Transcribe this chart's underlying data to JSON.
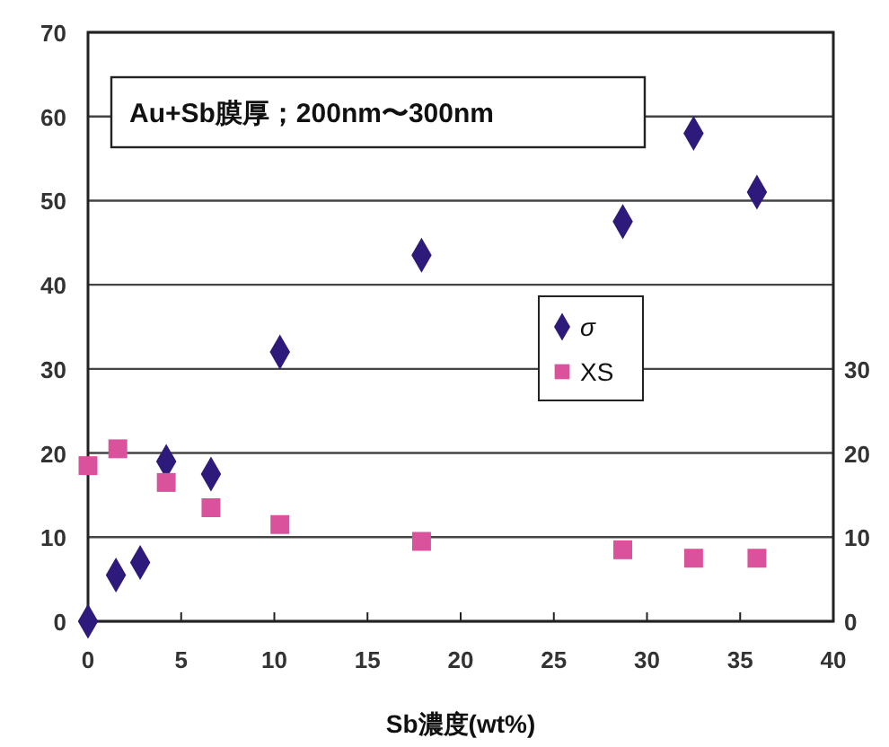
{
  "chart_data": {
    "type": "scatter",
    "xlabel": "Sb濃度(wt%)",
    "annotations": [
      "Au+Sb膜厚；200nm〜300nm"
    ],
    "xlim": [
      0,
      40
    ],
    "xticks": [
      0,
      5,
      10,
      15,
      20,
      25,
      30,
      35,
      40
    ],
    "ylim": [
      0,
      70
    ],
    "yticks": [
      0,
      10,
      20,
      30,
      40,
      50,
      60,
      70
    ],
    "y2lim": [
      0,
      70
    ],
    "y2ticks": [
      0,
      10,
      20,
      30
    ],
    "grid": "y",
    "legend": "right",
    "series": [
      {
        "name": "σ",
        "color": "#2e1a7a",
        "marker": "diamond",
        "x": [
          0,
          1.5,
          2.8,
          4.2,
          6.6,
          10.3,
          17.9,
          28.7,
          32.5,
          35.9
        ],
        "values": [
          0,
          5.5,
          7,
          19,
          17.5,
          32,
          43.5,
          47.5,
          58,
          51
        ]
      },
      {
        "name": "XS",
        "color": "#d9529b",
        "marker": "square",
        "x": [
          0,
          1.6,
          4.2,
          6.6,
          10.3,
          17.9,
          28.7,
          32.5,
          35.9
        ],
        "values": [
          18.5,
          20.5,
          16.5,
          13.5,
          11.5,
          9.5,
          8.5,
          7.5,
          7.5
        ]
      }
    ]
  }
}
